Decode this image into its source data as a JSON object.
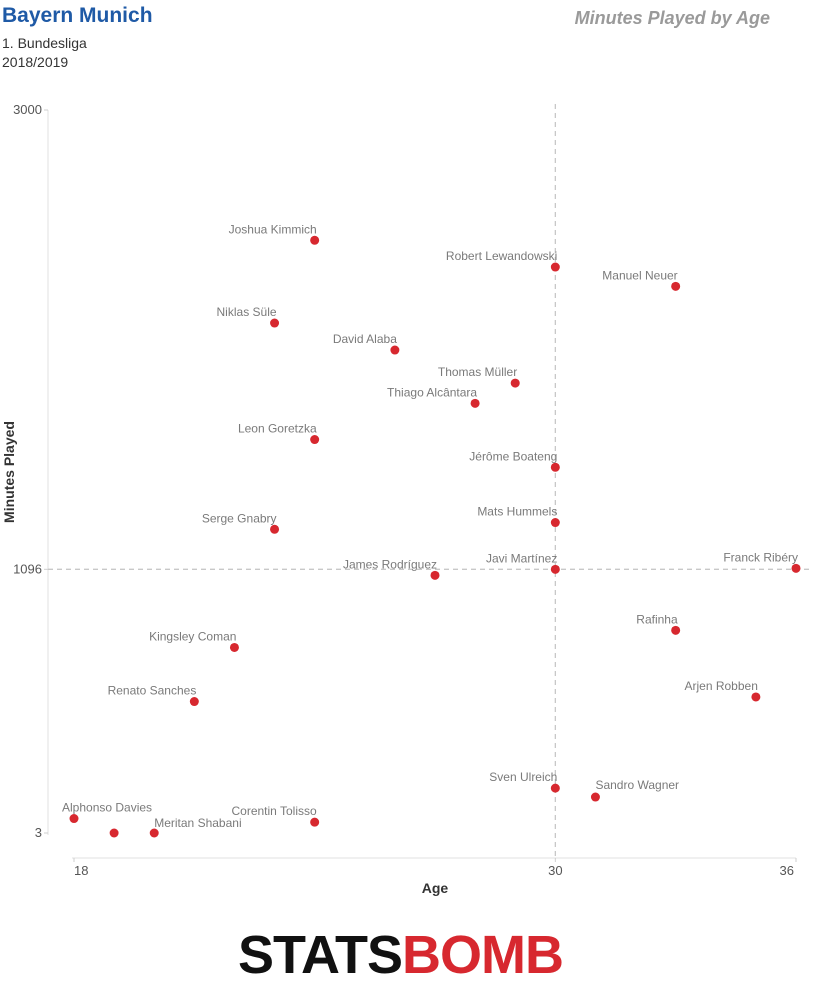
{
  "header": {
    "team": "Bayern Munich",
    "league": "1. Bundesliga",
    "season": "2018/2019",
    "chart_title": "Minutes Played by Age"
  },
  "logo": {
    "text_part1": "STATS",
    "text_part2": "BOMB"
  },
  "colors": {
    "point": "#d7282f",
    "title_blue": "#1f5aa6",
    "guide": "#c8c8c8"
  },
  "chart_data": {
    "type": "scatter",
    "title": "Minutes Played by Age",
    "xlabel": "Age",
    "ylabel": "Minutes Played",
    "xlim": [
      18,
      36
    ],
    "ylim": [
      3,
      3000
    ],
    "xticks": [
      "18",
      "30",
      "36"
    ],
    "yticks": [
      "3",
      "1096",
      "3000"
    ],
    "reference_lines": {
      "x": 30,
      "y": 1096
    },
    "grid": false,
    "points": [
      {
        "name": "Joshua Kimmich",
        "x": 24,
        "y": 2460
      },
      {
        "name": "Robert Lewandowski",
        "x": 30,
        "y": 2349
      },
      {
        "name": "Manuel Neuer",
        "x": 33,
        "y": 2269
      },
      {
        "name": "Niklas Süle",
        "x": 23,
        "y": 2117
      },
      {
        "name": "David Alaba",
        "x": 26,
        "y": 2005
      },
      {
        "name": "Thomas Müller",
        "x": 29,
        "y": 1868
      },
      {
        "name": "Thiago Alcântara",
        "x": 28,
        "y": 1784
      },
      {
        "name": "Leon Goretzka",
        "x": 24,
        "y": 1634
      },
      {
        "name": "Jérôme Boateng",
        "x": 30,
        "y": 1519
      },
      {
        "name": "Mats Hummels",
        "x": 30,
        "y": 1290
      },
      {
        "name": "Serge Gnabry",
        "x": 23,
        "y": 1262
      },
      {
        "name": "Franck Ribéry",
        "x": 36,
        "y": 1100
      },
      {
        "name": "Javi Martínez",
        "x": 30,
        "y": 1096
      },
      {
        "name": "James Rodríguez",
        "x": 27,
        "y": 1071
      },
      {
        "name": "Rafinha",
        "x": 33,
        "y": 843
      },
      {
        "name": "Kingsley Coman",
        "x": 22,
        "y": 772
      },
      {
        "name": "Arjen Robben",
        "x": 35,
        "y": 567
      },
      {
        "name": "Renato Sanches",
        "x": 21,
        "y": 548
      },
      {
        "name": "Sven Ulreich",
        "x": 30,
        "y": 189
      },
      {
        "name": "Sandro Wagner",
        "x": 31,
        "y": 152
      },
      {
        "name": "Corentin Tolisso",
        "x": 24,
        "y": 48
      },
      {
        "name": "Alphonso Davies",
        "x": 18,
        "y": 63
      },
      {
        "name": "Meritan Shabani",
        "x": 20,
        "y": 3
      },
      {
        "name": "",
        "x": 19,
        "y": 3
      }
    ]
  }
}
